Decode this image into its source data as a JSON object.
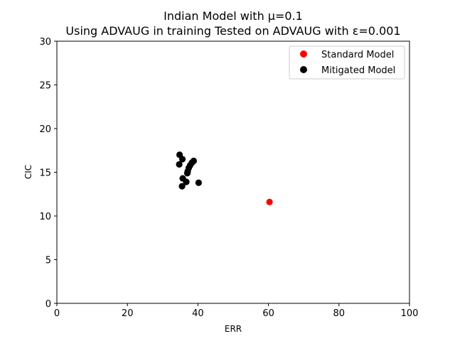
{
  "chart_data": {
    "type": "scatter",
    "title_line1": "Indian Model with μ=0.1",
    "title_line2": "Using ADVAUG in training Tested on ADVAUG with ε=0.001",
    "xlabel": "ERR",
    "ylabel": "CIC",
    "xlim": [
      0,
      100
    ],
    "ylim": [
      0,
      30
    ],
    "xticks": [
      0,
      20,
      40,
      60,
      80,
      100
    ],
    "yticks": [
      0,
      5,
      10,
      15,
      20,
      25,
      30
    ],
    "grid": false,
    "legend_position": "top-right",
    "series": [
      {
        "name": "Standard Model",
        "color": "#ff0000",
        "points": [
          [
            60.3,
            11.6
          ]
        ]
      },
      {
        "name": "Mitigated Model",
        "color": "#000000",
        "points": [
          [
            34.8,
            17.0
          ],
          [
            35.6,
            16.5
          ],
          [
            34.7,
            15.9
          ],
          [
            38.8,
            16.3
          ],
          [
            38.3,
            16.1
          ],
          [
            37.8,
            15.8
          ],
          [
            37.4,
            15.5
          ],
          [
            37.1,
            15.1
          ],
          [
            37.0,
            14.9
          ],
          [
            35.7,
            14.3
          ],
          [
            36.7,
            13.9
          ],
          [
            40.2,
            13.8
          ],
          [
            35.5,
            13.4
          ]
        ]
      }
    ]
  }
}
